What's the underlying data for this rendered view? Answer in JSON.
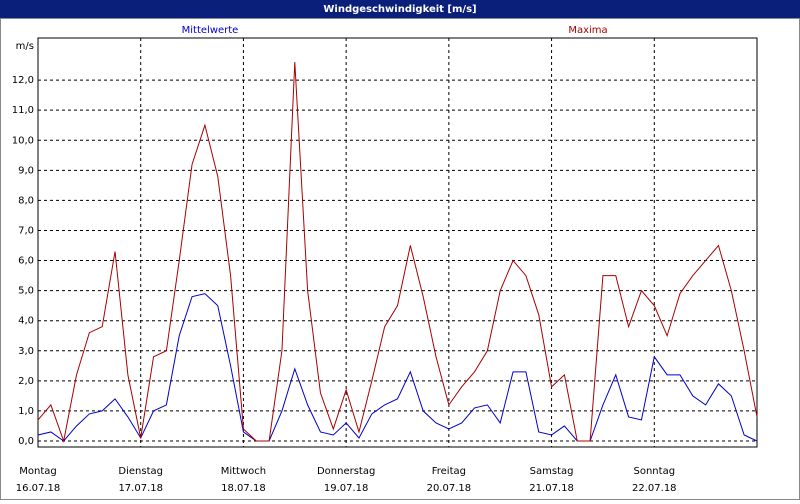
{
  "chart_data": {
    "type": "line",
    "title": "Windgeschwindigkeit [m/s]",
    "y_label": "m/s",
    "x": [
      0,
      0.125,
      0.25,
      0.375,
      0.5,
      0.625,
      0.75,
      0.875,
      1,
      1.125,
      1.25,
      1.375,
      1.5,
      1.625,
      1.75,
      1.875,
      2,
      2.125,
      2.25,
      2.375,
      2.5,
      2.625,
      2.75,
      2.875,
      3,
      3.125,
      3.25,
      3.375,
      3.5,
      3.625,
      3.75,
      3.875,
      4,
      4.125,
      4.25,
      4.375,
      4.5,
      4.625,
      4.75,
      4.875,
      5,
      5.125,
      5.25,
      5.375,
      5.5,
      5.625,
      5.75,
      5.875,
      6,
      6.125,
      6.25,
      6.375,
      6.5,
      6.625,
      6.75,
      6.875,
      7
    ],
    "series": [
      {
        "name": "Mittelwerte",
        "color": "#0000cc",
        "values": [
          0.2,
          0.3,
          0.0,
          0.5,
          0.9,
          1.0,
          1.4,
          0.8,
          0.1,
          1.0,
          1.2,
          3.5,
          4.8,
          4.9,
          4.5,
          2.5,
          0.3,
          0.0,
          0.0,
          1.0,
          2.4,
          1.2,
          0.3,
          0.2,
          0.6,
          0.1,
          0.9,
          1.2,
          1.4,
          2.3,
          1.0,
          0.6,
          0.4,
          0.6,
          1.1,
          1.2,
          0.6,
          2.3,
          2.3,
          0.3,
          0.2,
          0.5,
          0.0,
          0.0,
          1.2,
          2.2,
          0.8,
          0.7,
          2.8,
          2.2,
          2.2,
          1.5,
          1.2,
          1.9,
          1.5,
          0.2,
          0.0
        ]
      },
      {
        "name": "Maxima",
        "color": "#aa0000",
        "values": [
          0.7,
          1.2,
          0.0,
          2.2,
          3.6,
          3.8,
          6.3,
          2.2,
          0.1,
          2.8,
          3.0,
          6.0,
          9.2,
          10.5,
          8.8,
          5.5,
          0.4,
          0.0,
          0.0,
          3.0,
          12.6,
          5.0,
          1.6,
          0.4,
          1.7,
          0.3,
          2.0,
          3.8,
          4.5,
          6.5,
          4.8,
          2.8,
          1.2,
          1.8,
          2.3,
          3.0,
          5.0,
          6.0,
          5.5,
          4.2,
          1.8,
          2.2,
          0.0,
          0.0,
          5.5,
          5.5,
          3.8,
          5.0,
          4.5,
          3.5,
          4.9,
          5.5,
          6.0,
          6.5,
          5.0,
          3.0,
          0.8
        ]
      }
    ],
    "xlim": [
      0,
      7
    ],
    "ylim": [
      -0.2,
      13.4
    ],
    "xticks": [
      {
        "value": 0,
        "label": [
          "Montag",
          "16.07.18"
        ]
      },
      {
        "value": 1,
        "label": [
          "Dienstag",
          "17.07.18"
        ]
      },
      {
        "value": 2,
        "label": [
          "Mittwoch",
          "18.07.18"
        ]
      },
      {
        "value": 3,
        "label": [
          "Donnerstag",
          "19.07.18"
        ]
      },
      {
        "value": 4,
        "label": [
          "Freitag",
          "20.07.18"
        ]
      },
      {
        "value": 5,
        "label": [
          "Samstag",
          "21.07.18"
        ]
      },
      {
        "value": 6,
        "label": [
          "Sonntag",
          "22.07.18"
        ]
      }
    ],
    "yticks": [
      {
        "value": 0,
        "label": "0,0"
      },
      {
        "value": 1,
        "label": "1,0"
      },
      {
        "value": 2,
        "label": "2,0"
      },
      {
        "value": 3,
        "label": "3,0"
      },
      {
        "value": 4,
        "label": "4,0"
      },
      {
        "value": 5,
        "label": "5,0"
      },
      {
        "value": 6,
        "label": "6,0"
      },
      {
        "value": 7,
        "label": "7,0"
      },
      {
        "value": 8,
        "label": "8,0"
      },
      {
        "value": 9,
        "label": "9,0"
      },
      {
        "value": 10,
        "label": "10,0"
      },
      {
        "value": 11,
        "label": "11,0"
      },
      {
        "value": 12,
        "label": "12,0"
      }
    ],
    "grid": true
  }
}
